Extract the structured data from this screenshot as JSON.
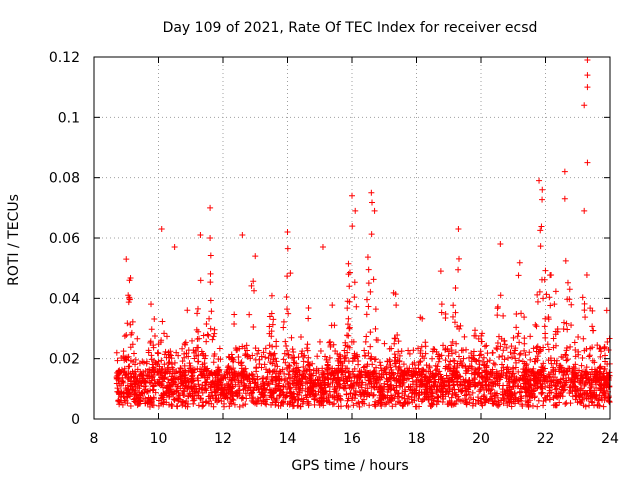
{
  "chart_data": {
    "type": "scatter",
    "title": "Day 109 of 2021, Rate Of TEC Index for receiver ecsd",
    "xlabel": "GPS time / hours",
    "ylabel": "ROTI / TECUs",
    "xlim": [
      8,
      24
    ],
    "ylim": [
      0,
      0.12
    ],
    "xticks": [
      8,
      10,
      12,
      14,
      16,
      18,
      20,
      22,
      24
    ],
    "xtick_labels": [
      "8",
      "10",
      "12",
      "14",
      "16",
      "18",
      "20",
      "22",
      "24"
    ],
    "yticks": [
      0,
      0.02,
      0.04,
      0.06,
      0.08,
      0.1,
      0.12
    ],
    "ytick_labels": [
      "0",
      "0.02",
      "0.04",
      "0.06",
      "0.08",
      "0.1",
      "0.12"
    ],
    "grid": true,
    "marker": "+",
    "color": "#ff0000",
    "x_start": 8.7,
    "x_end": 24.0,
    "baseline_range": [
      0.004,
      0.016
    ],
    "notable_points": [
      {
        "x": 9.0,
        "y": 0.053
      },
      {
        "x": 9.1,
        "y": 0.046
      },
      {
        "x": 10.1,
        "y": 0.063
      },
      {
        "x": 10.5,
        "y": 0.057
      },
      {
        "x": 11.3,
        "y": 0.061
      },
      {
        "x": 11.6,
        "y": 0.07
      },
      {
        "x": 11.6,
        "y": 0.06
      },
      {
        "x": 12.6,
        "y": 0.061
      },
      {
        "x": 13.0,
        "y": 0.054
      },
      {
        "x": 14.0,
        "y": 0.062
      },
      {
        "x": 15.1,
        "y": 0.057
      },
      {
        "x": 16.0,
        "y": 0.074
      },
      {
        "x": 16.1,
        "y": 0.069
      },
      {
        "x": 16.6,
        "y": 0.075
      },
      {
        "x": 16.7,
        "y": 0.069
      },
      {
        "x": 19.3,
        "y": 0.063
      },
      {
        "x": 20.6,
        "y": 0.058
      },
      {
        "x": 21.8,
        "y": 0.079
      },
      {
        "x": 21.9,
        "y": 0.076
      },
      {
        "x": 22.6,
        "y": 0.082
      },
      {
        "x": 22.6,
        "y": 0.073
      },
      {
        "x": 23.3,
        "y": 0.119
      },
      {
        "x": 23.3,
        "y": 0.114
      },
      {
        "x": 23.3,
        "y": 0.11
      },
      {
        "x": 23.2,
        "y": 0.104
      },
      {
        "x": 23.3,
        "y": 0.085
      },
      {
        "x": 23.2,
        "y": 0.069
      },
      {
        "x": 23.9,
        "y": 0.036
      }
    ],
    "burst_regions": [
      {
        "x": 9.1,
        "amp": 0.04
      },
      {
        "x": 9.8,
        "amp": 0.032
      },
      {
        "x": 10.15,
        "amp": 0.05
      },
      {
        "x": 10.9,
        "amp": 0.025
      },
      {
        "x": 11.3,
        "amp": 0.04
      },
      {
        "x": 11.6,
        "amp": 0.045
      },
      {
        "x": 12.4,
        "amp": 0.035
      },
      {
        "x": 12.9,
        "amp": 0.05
      },
      {
        "x": 13.5,
        "amp": 0.035
      },
      {
        "x": 14.0,
        "amp": 0.055
      },
      {
        "x": 14.6,
        "amp": 0.034
      },
      {
        "x": 15.4,
        "amp": 0.035
      },
      {
        "x": 16.0,
        "amp": 0.065
      },
      {
        "x": 16.6,
        "amp": 0.068
      },
      {
        "x": 17.3,
        "amp": 0.034
      },
      {
        "x": 18.1,
        "amp": 0.03
      },
      {
        "x": 18.8,
        "amp": 0.045
      },
      {
        "x": 19.3,
        "amp": 0.06
      },
      {
        "x": 19.9,
        "amp": 0.04
      },
      {
        "x": 20.6,
        "amp": 0.05
      },
      {
        "x": 21.2,
        "amp": 0.053
      },
      {
        "x": 21.9,
        "amp": 0.072
      },
      {
        "x": 22.2,
        "amp": 0.055
      },
      {
        "x": 22.7,
        "amp": 0.06
      },
      {
        "x": 23.3,
        "amp": 0.07
      },
      {
        "x": 23.9,
        "amp": 0.03
      }
    ],
    "n_points": 3200,
    "seed": 109
  }
}
